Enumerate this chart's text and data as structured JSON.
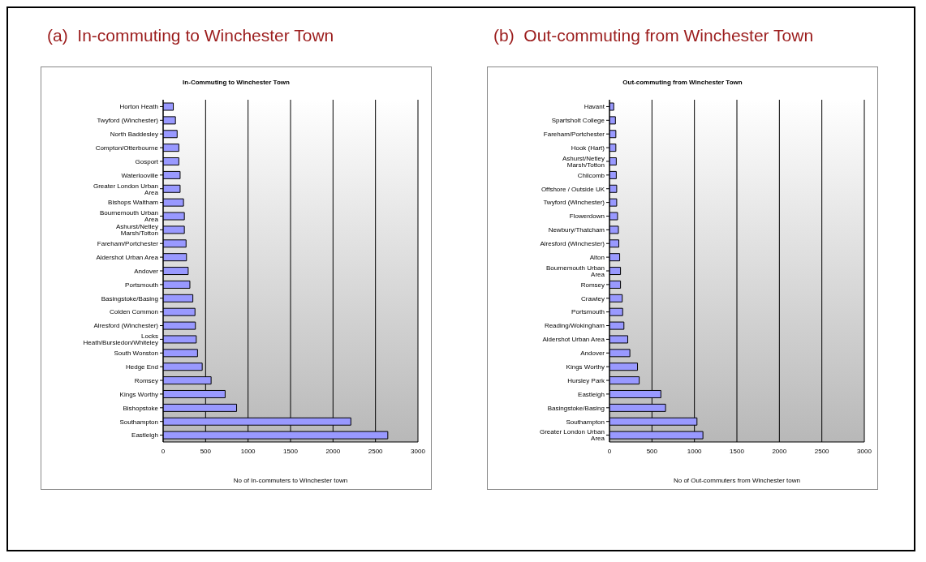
{
  "chart_data": [
    {
      "type": "bar",
      "orientation": "horizontal",
      "subtitle": "(a)  In-commuting to Winchester Town",
      "title": "In-Commuting to Winchester Town",
      "xlabel": "No of In-commuters to Winchester town",
      "categories": [
        "Horton Heath",
        "Twyford (Winchester)",
        "North Baddesley",
        "Compton/Otterbourne",
        "Gosport",
        "Waterlooville",
        "Greater London Urban Area",
        "Bishops Waltham",
        "Bournemouth Urban Area",
        "Ashurst/Netley Marsh/Totton",
        "Fareham/Portchester",
        "Aldershot Urban Area",
        "Andover",
        "Portsmouth",
        "Basingstoke/Basing",
        "Colden Common",
        "Alresford (Winchester)",
        "Locks Heath/Bursledon/Whiteley",
        "South Wonston",
        "Hedge End",
        "Romsey",
        "Kings Worthy",
        "Bishopstoke",
        "Southampton",
        "Eastleigh"
      ],
      "values": [
        120,
        145,
        165,
        185,
        185,
        200,
        200,
        240,
        250,
        250,
        270,
        275,
        295,
        315,
        350,
        375,
        380,
        390,
        405,
        460,
        565,
        730,
        865,
        2210,
        2645
      ],
      "color": "#9999ff",
      "xlim": [
        0,
        3000
      ],
      "xticks": [
        0,
        500,
        1000,
        1500,
        2000,
        2500,
        3000
      ],
      "grid": "x",
      "legend": false
    },
    {
      "type": "bar",
      "orientation": "horizontal",
      "subtitle": "(b)  Out-commuting from Winchester Town",
      "title": "Out-commuting from Winchester Town",
      "xlabel": "No of Out-commuters from Winchester town",
      "categories": [
        "Havant",
        "Spartsholt College",
        "Fareham/Portchester",
        "Hook (Hart)",
        "Ashurst/Netley Marsh/Totton",
        "Chilcomb",
        "Offshore / Outside UK",
        "Twyford (Winchester)",
        "Flowerdown",
        "Newbury/Thatcham",
        "Alresford (Winchester)",
        "Alton",
        "Bournemouth Urban Area",
        "Romsey",
        "Crawley",
        "Portsmouth",
        "Reading/Wokingham",
        "Aldershot Urban Area",
        "Andover",
        "Kings Worthy",
        "Hursley Park",
        "Eastleigh",
        "Basingstoke/Basing",
        "Southampton",
        "Greater London Urban Area"
      ],
      "values": [
        50,
        70,
        75,
        75,
        80,
        80,
        85,
        85,
        95,
        105,
        110,
        120,
        130,
        130,
        150,
        155,
        170,
        215,
        240,
        330,
        350,
        605,
        660,
        1030,
        1100
      ],
      "color": "#9999ff",
      "xlim": [
        0,
        3000
      ],
      "xticks": [
        0,
        500,
        1000,
        1500,
        2000,
        2500,
        3000
      ],
      "grid": "x",
      "legend": false
    }
  ]
}
